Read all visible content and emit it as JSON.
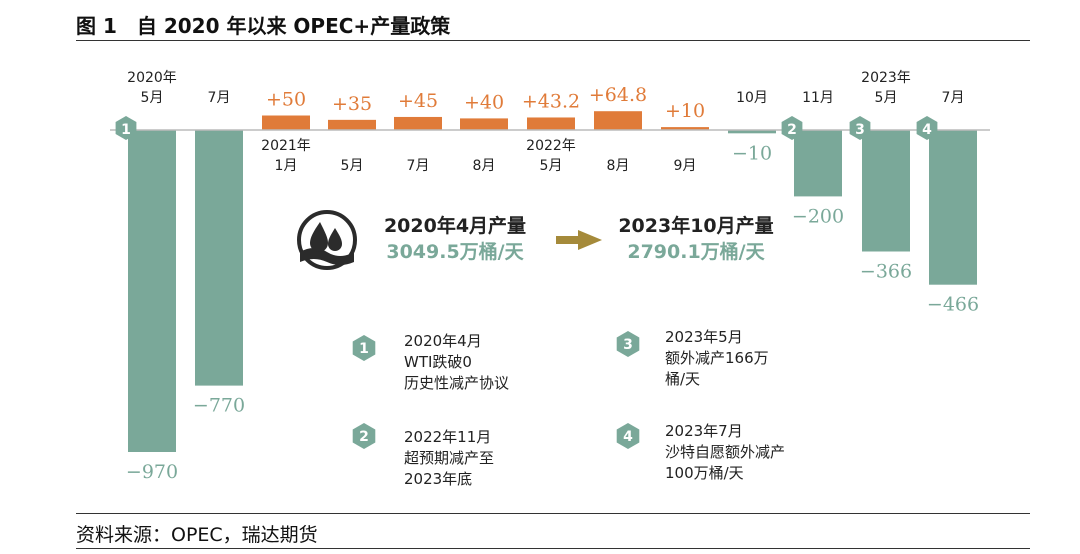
{
  "title": "图 1　自 2020 年以来 OPEC+产量政策",
  "source": "资料来源：OPEC，瑞达期货",
  "colors": {
    "increase": "#E07B39",
    "decrease": "#7AA899",
    "badge": "#7AA899",
    "arrow": "#A58A3A",
    "axis": "#BBBBBB"
  },
  "chart_data": {
    "type": "bar",
    "unit": "万桶/天",
    "categories": [
      "2020年 5月",
      "7月",
      "2021年 1月",
      "5月",
      "7月",
      "8月",
      "2022年 5月",
      "8月",
      "9月",
      "10月",
      "11月",
      "2023年 5月",
      "7月"
    ],
    "values": [
      -970,
      -770,
      50,
      35,
      45,
      40,
      43.2,
      64.8,
      10,
      -10,
      -200,
      -366,
      -466
    ],
    "value_labels": [
      "−970",
      "−770",
      "+50",
      "+35",
      "+45",
      "+40",
      "+43.2",
      "+64.8",
      "+10",
      "−10",
      "−200",
      "−366",
      "−466"
    ],
    "category_lines": [
      [
        "2020年",
        "5月"
      ],
      [
        "7月"
      ],
      [
        "2021年",
        "1月"
      ],
      [
        "5月"
      ],
      [
        "7月"
      ],
      [
        "8月"
      ],
      [
        "2022年",
        "5月"
      ],
      [
        "8月"
      ],
      [
        "9月"
      ],
      [
        "10月"
      ],
      [
        "11月"
      ],
      [
        "2023年",
        "5月"
      ],
      [
        "7月"
      ]
    ],
    "badges": [
      {
        "num": "1",
        "at_index": 0
      },
      {
        "num": "2",
        "at_index": 10
      },
      {
        "num": "3",
        "at_index": 11
      },
      {
        "num": "4",
        "at_index": 12
      }
    ]
  },
  "summary": {
    "from_label": "2020年4月产量",
    "from_value": "3049.5万桶/天",
    "to_label": "2023年10月产量",
    "to_value": "2790.1万桶/天",
    "icon": "oil-drops-icon"
  },
  "notes": [
    {
      "num": "1",
      "lines": [
        "2020年4月",
        "WTI跌破0",
        "历史性减产协议"
      ]
    },
    {
      "num": "2",
      "lines": [
        "2022年11月",
        "超预期减产至",
        "2023年底"
      ]
    },
    {
      "num": "3",
      "lines": [
        "2023年5月",
        "额外减产166万",
        "桶/天"
      ]
    },
    {
      "num": "4",
      "lines": [
        "2023年7月",
        "沙特自愿额外减产",
        "100万桶/天"
      ]
    }
  ]
}
